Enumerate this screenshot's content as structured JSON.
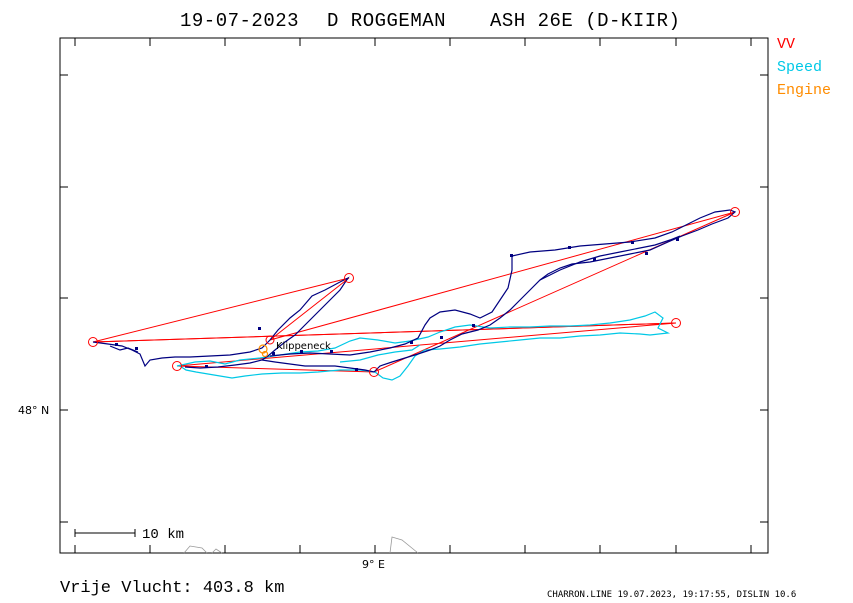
{
  "header": {
    "date": "19-07-2023",
    "pilot": "D ROGGEMAN",
    "glider": "ASH 26E (D-KIIR)"
  },
  "legend": [
    {
      "label": "VV",
      "color": "#ff0000"
    },
    {
      "label": "Speed",
      "color": "#00c8e6"
    },
    {
      "label": "Engine",
      "color": "#ff8c00"
    }
  ],
  "colors": {
    "track": "#000080",
    "task": "#ff0000",
    "speed": "#00c8e6",
    "engine": "#ff8c00",
    "frame": "#000000"
  },
  "axes": {
    "lat_label": "48° N",
    "lon_label": "9° E"
  },
  "scale_bar": {
    "label": "10  km"
  },
  "place": {
    "name": "Klippeneck"
  },
  "footer": {
    "distance_text": "Vrije Vlucht:  403.8 km",
    "credit": "CHARRON.LINE 19.07.2023, 19:17:55, DISLIN 10.6"
  }
}
